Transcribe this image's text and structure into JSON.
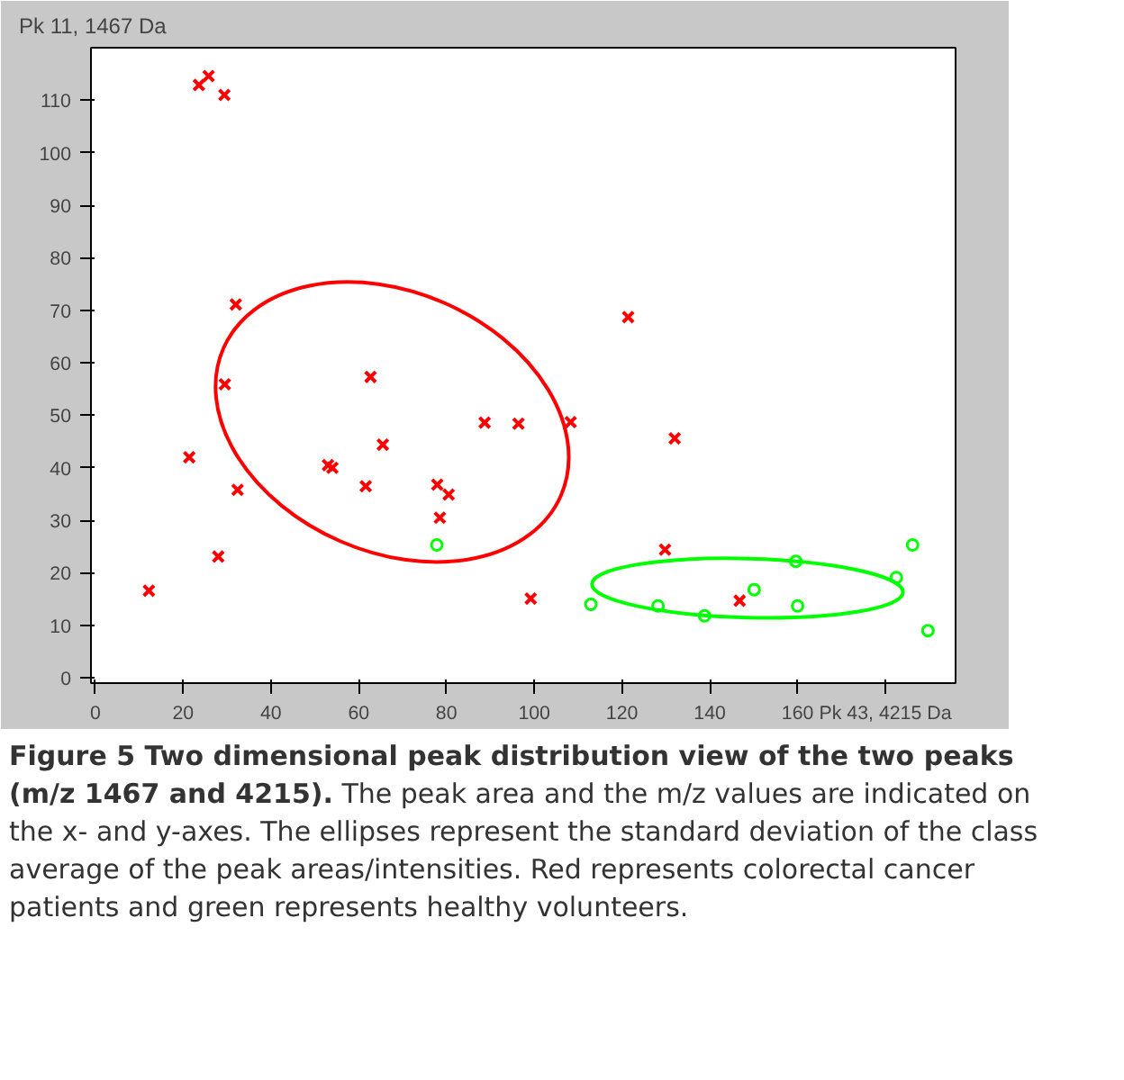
{
  "chart_data": {
    "type": "scatter",
    "title": "Figure 5 Two dimensional peak distribution view of the two peaks (m/z 1467 and 4215).",
    "ylabel": "Pk 11, 1467 Da",
    "annotations": [
      "The peak area and the m/z values are indicated on the x- and y-axes. The ellipses represent the standard deviation of the class average of the peak areas/intensities. Red represents colorectal cancer patients and green represents healthy volunteers."
    ],
    "xlim": [
      -1,
      196
    ],
    "ylim": [
      -1,
      120
    ],
    "xticks": [
      0,
      20,
      40,
      60,
      80,
      100,
      120,
      140,
      160,
      {
        "value": 180,
        "label": "Pk 43, 4215 Da"
      }
    ],
    "yticks": [
      0,
      10,
      20,
      30,
      40,
      50,
      60,
      70,
      80,
      90,
      100,
      110
    ],
    "grid": false,
    "series": [
      {
        "marker": "cross",
        "color": "#ff0000",
        "x": [
          12.2,
          21.4,
          29.5,
          32.4,
          28.0,
          53.0,
          54.0,
          62.7,
          65.5,
          61.6,
          77.9,
          80.5,
          78.5,
          88.7,
          23.6,
          25.8,
          29.4,
          32.0,
          121.4,
          96.4,
          108.3,
          132.0,
          129.8,
          99.2,
          146.8
        ],
        "values": [
          16.6,
          42.0,
          55.9,
          35.8,
          23.1,
          40.5,
          40.0,
          57.3,
          44.4,
          36.5,
          36.8,
          34.9,
          30.5,
          48.6,
          112.9,
          114.6,
          111.0,
          71.1,
          68.7,
          48.4,
          48.7,
          45.6,
          24.4,
          15.1,
          14.7
        ]
      },
      {
        "marker": "circle",
        "color": "#00ff00",
        "x": [
          77.8,
          112.9,
          128.2,
          138.8,
          150.1,
          159.6,
          160.0,
          182.5,
          186.2,
          189.7
        ],
        "values": [
          25.3,
          14.0,
          13.7,
          11.8,
          16.8,
          22.2,
          13.7,
          19.1,
          25.3,
          9.0
        ]
      }
    ]
  }
}
